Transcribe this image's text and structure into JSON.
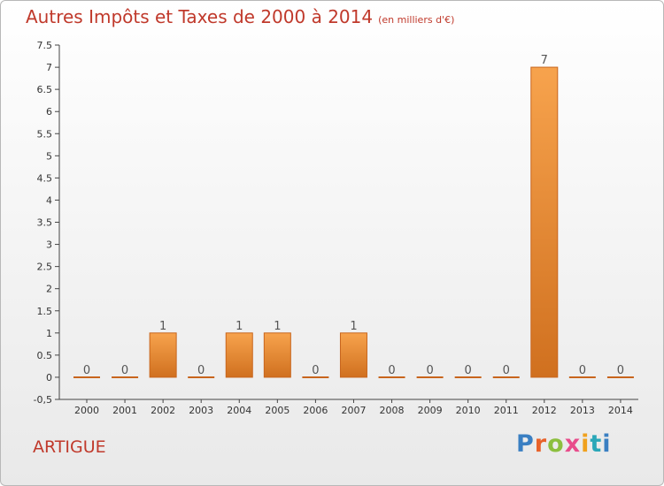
{
  "chart_data": {
    "type": "bar",
    "title": "Autres Impôts et Taxes de 2000 à 2014",
    "subtitle": "(en milliers d'€)",
    "categories": [
      "2000",
      "2001",
      "2002",
      "2003",
      "2004",
      "2005",
      "2006",
      "2007",
      "2008",
      "2009",
      "2010",
      "2011",
      "2012",
      "2013",
      "2014"
    ],
    "values": [
      0,
      0,
      1,
      0,
      1,
      1,
      0,
      1,
      0,
      0,
      0,
      0,
      7,
      0,
      0
    ],
    "data_labels": [
      "0",
      "0",
      "1",
      "0",
      "1",
      "1",
      "0",
      "1",
      "0",
      "0",
      "0",
      "0",
      "7",
      "0",
      "0"
    ],
    "ylim": [
      -0.5,
      7.5
    ],
    "yticks": [
      "-0,5",
      "0",
      "0.5",
      "1",
      "1.5",
      "2",
      "2.5",
      "3",
      "3.5",
      "4",
      "4.5",
      "5",
      "5.5",
      "6",
      "6.5",
      "7",
      "7.5"
    ],
    "ytick_values": [
      -0.5,
      0,
      0.5,
      1,
      1.5,
      2,
      2.5,
      3,
      3.5,
      4,
      4.5,
      5,
      5.5,
      6,
      6.5,
      7,
      7.5
    ],
    "grid": false,
    "bar_color": "#f0953a",
    "bar_edge_color": "#c8651d",
    "label_color": "#555555"
  },
  "footer": {
    "town": "ARTIGUE",
    "logo_letters": [
      "P",
      "r",
      "o",
      "x",
      "i",
      "t",
      "i"
    ]
  }
}
